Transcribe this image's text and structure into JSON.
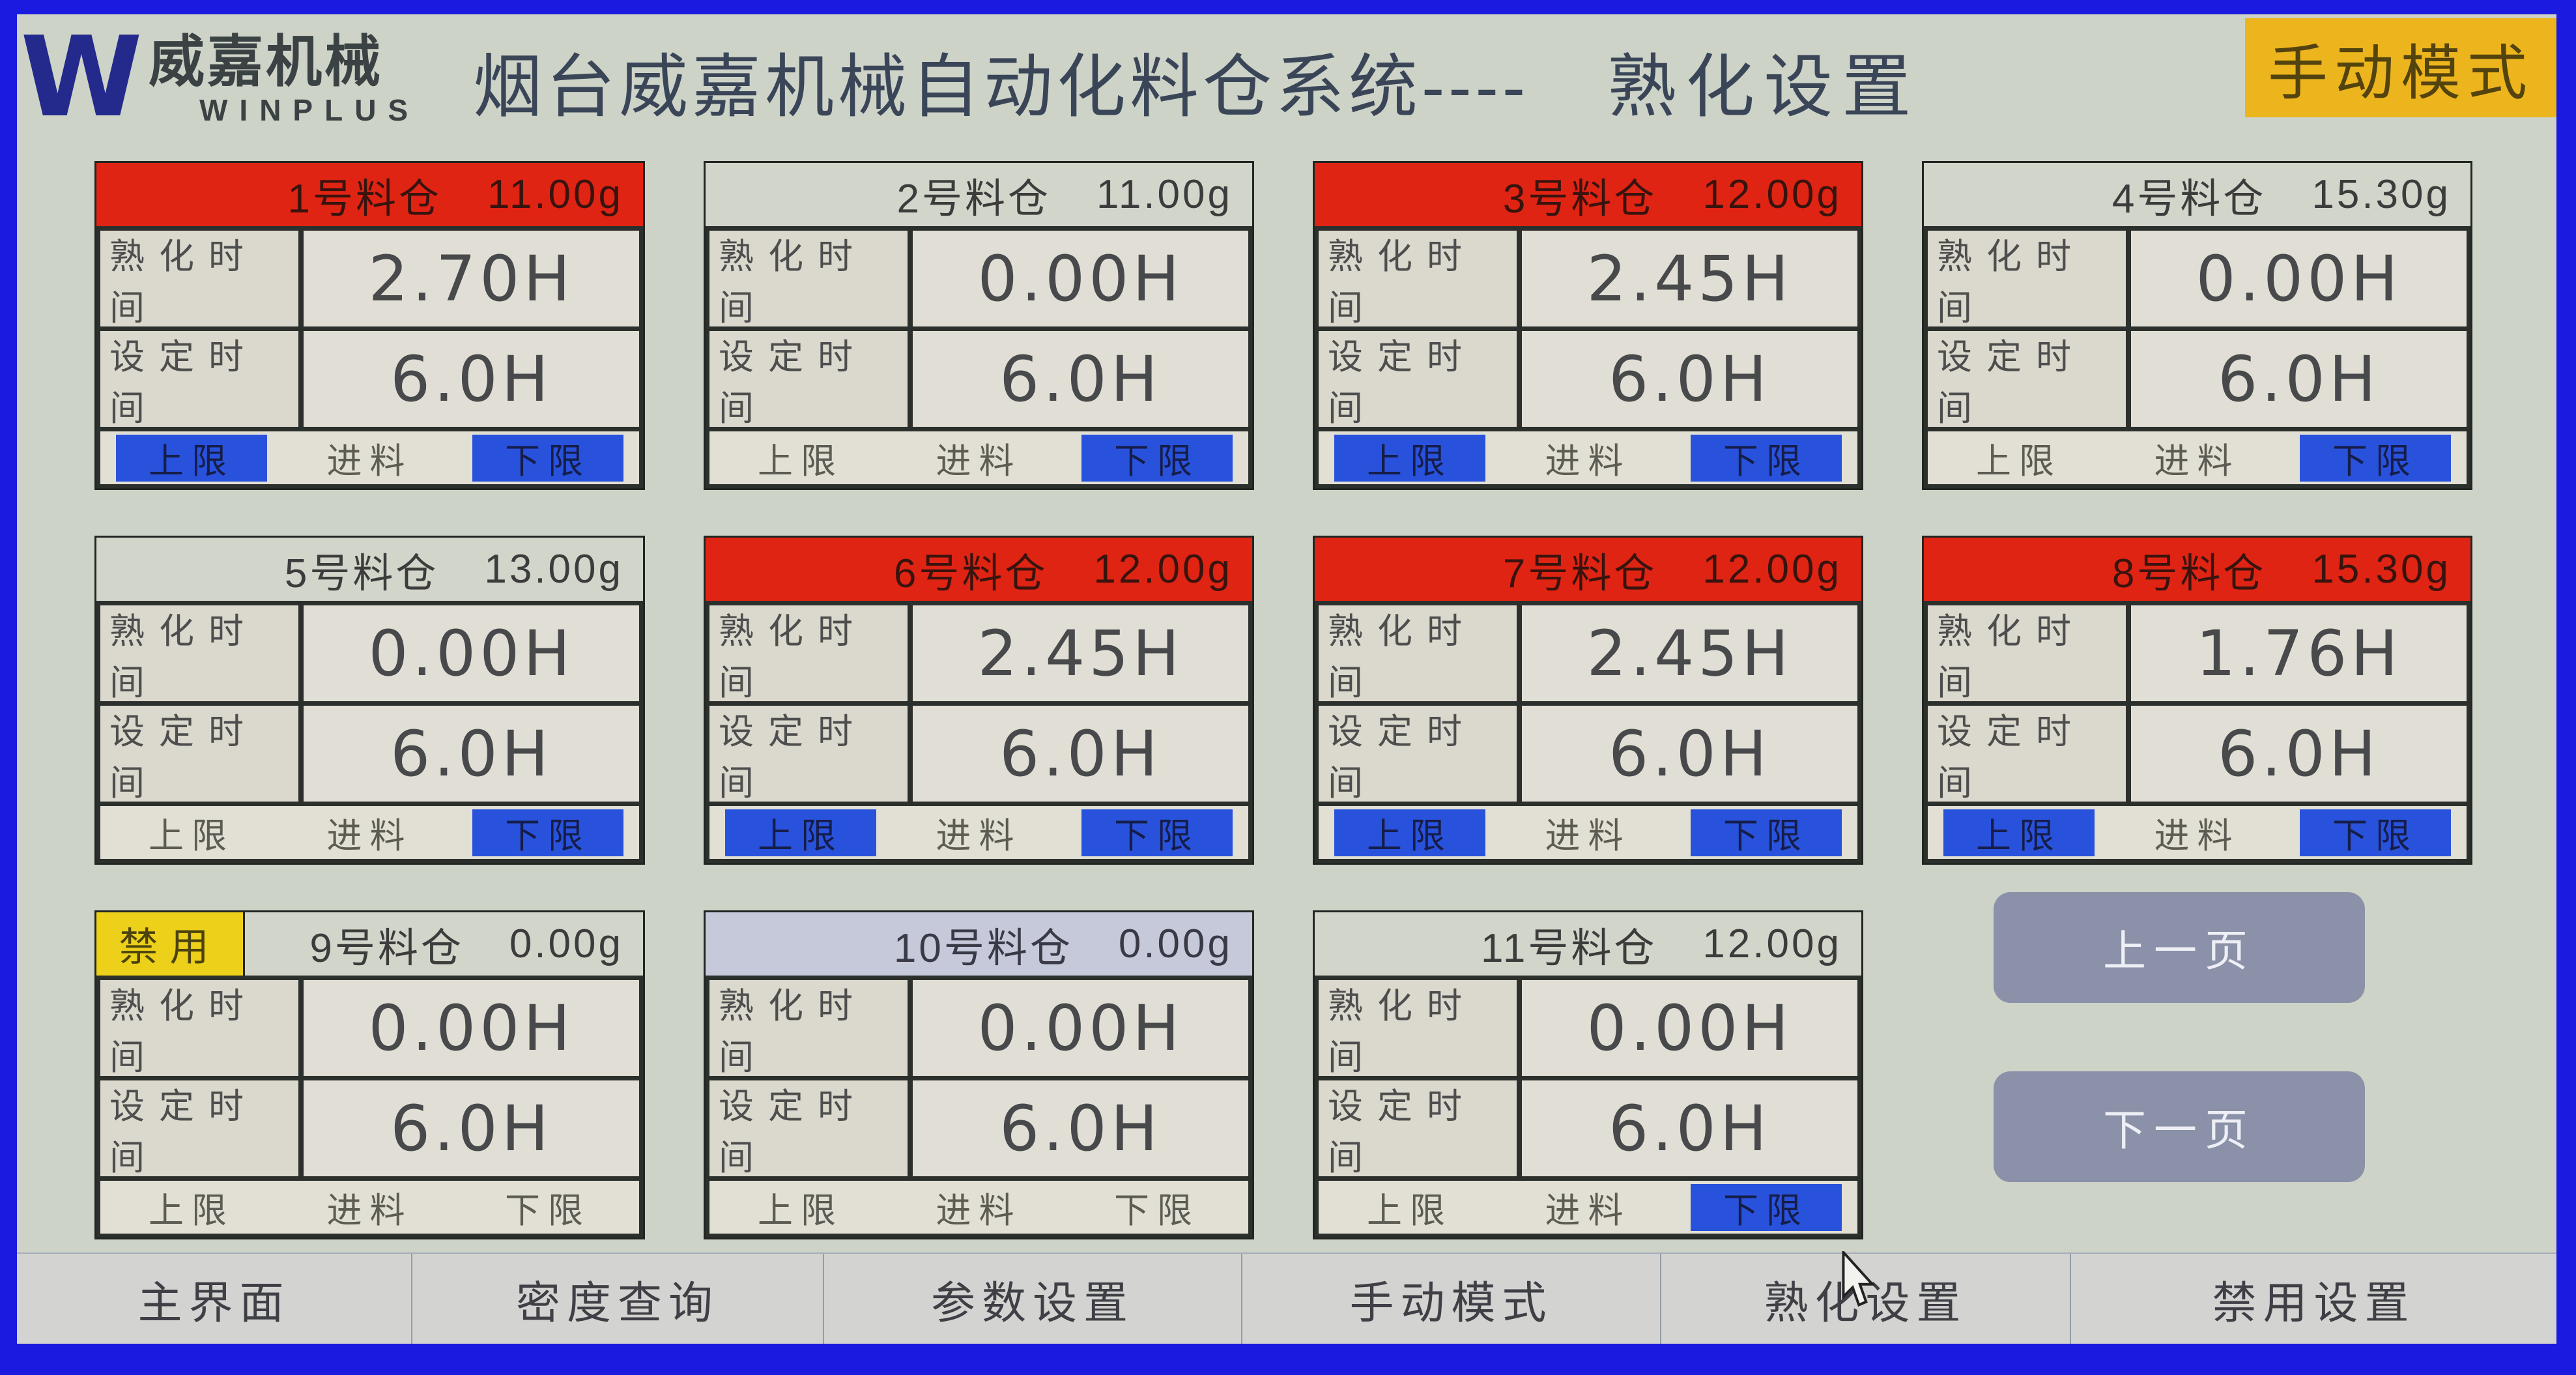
{
  "header": {
    "logo": {
      "mark": "W",
      "brand": "威嘉机械",
      "sub": "WINPLUS"
    },
    "title": "烟台威嘉机械自动化料仓系统----",
    "page_title": "熟化设置",
    "mode_badge": "手动模式"
  },
  "labels": {
    "curing_time": "熟化时间",
    "set_time": "设定时间",
    "upper": "上限",
    "feed": "进料",
    "lower": "下限",
    "disabled": "禁用"
  },
  "silos": [
    {
      "name": "1号料仓",
      "weight": "11.00g",
      "header": "red",
      "curing": "2.70H",
      "set": "6.0H",
      "upper": true,
      "feed": false,
      "lower": true,
      "disabled": false
    },
    {
      "name": "2号料仓",
      "weight": "11.00g",
      "header": "plain",
      "curing": "0.00H",
      "set": "6.0H",
      "upper": false,
      "feed": false,
      "lower": true,
      "disabled": false
    },
    {
      "name": "3号料仓",
      "weight": "12.00g",
      "header": "red",
      "curing": "2.45H",
      "set": "6.0H",
      "upper": true,
      "feed": false,
      "lower": true,
      "disabled": false
    },
    {
      "name": "4号料仓",
      "weight": "15.30g",
      "header": "plain",
      "curing": "0.00H",
      "set": "6.0H",
      "upper": false,
      "feed": false,
      "lower": true,
      "disabled": false
    },
    {
      "name": "5号料仓",
      "weight": "13.00g",
      "header": "plain",
      "curing": "0.00H",
      "set": "6.0H",
      "upper": false,
      "feed": false,
      "lower": true,
      "disabled": false
    },
    {
      "name": "6号料仓",
      "weight": "12.00g",
      "header": "red",
      "curing": "2.45H",
      "set": "6.0H",
      "upper": true,
      "feed": false,
      "lower": true,
      "disabled": false
    },
    {
      "name": "7号料仓",
      "weight": "12.00g",
      "header": "red",
      "curing": "2.45H",
      "set": "6.0H",
      "upper": true,
      "feed": false,
      "lower": true,
      "disabled": false
    },
    {
      "name": "8号料仓",
      "weight": "15.30g",
      "header": "red",
      "curing": "1.76H",
      "set": "6.0H",
      "upper": true,
      "feed": false,
      "lower": true,
      "disabled": false
    },
    {
      "name": "9号料仓",
      "weight": "0.00g",
      "header": "plain",
      "curing": "0.00H",
      "set": "6.0H",
      "upper": false,
      "feed": false,
      "lower": false,
      "disabled": true
    },
    {
      "name": "10号料仓",
      "weight": "0.00g",
      "header": "lavender",
      "curing": "0.00H",
      "set": "6.0H",
      "upper": false,
      "feed": false,
      "lower": false,
      "disabled": false
    },
    {
      "name": "11号料仓",
      "weight": "12.00g",
      "header": "plain",
      "curing": "0.00H",
      "set": "6.0H",
      "upper": false,
      "feed": false,
      "lower": true,
      "disabled": false
    }
  ],
  "pagination": {
    "prev": "上一页",
    "next": "下一页"
  },
  "bottom_nav": [
    {
      "id": "main-screen",
      "label": "主界面"
    },
    {
      "id": "density-query",
      "label": "密度查询"
    },
    {
      "id": "param-settings",
      "label": "参数设置"
    },
    {
      "id": "manual-mode",
      "label": "手动模式"
    },
    {
      "id": "curing-settings",
      "label": "熟化设置"
    },
    {
      "id": "disable-settings",
      "label": "禁用设置"
    }
  ],
  "colors": {
    "header_red": "#df2414",
    "active_blue": "#2952dc",
    "disabled_yellow": "#ecd019",
    "mode_yellow": "#edb51d",
    "nav_button_gray": "#8b91a8",
    "frame_blue": "#1a1ae0"
  }
}
